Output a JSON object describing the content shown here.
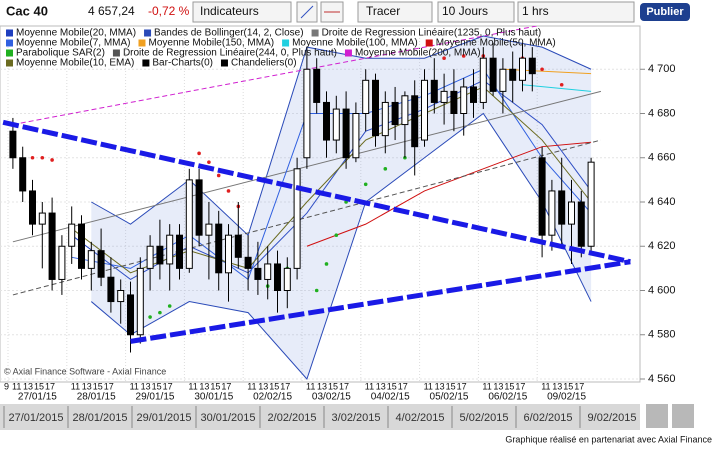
{
  "header": {
    "symbol": "Cac 40",
    "price": "4 657,24",
    "change": "-0,72 %",
    "indicators_button": "Indicateurs",
    "draw_button": "Tracer",
    "period": "10 Jours",
    "interval": "1 hrs",
    "publish_button": "Publier"
  },
  "chart_data": {
    "type": "candlestick",
    "ylim": [
      4560,
      4720
    ],
    "yticks": [
      {
        "value": 4560,
        "label": "4 560"
      },
      {
        "value": 4580,
        "label": "4 580"
      },
      {
        "value": 4600,
        "label": "4 600"
      },
      {
        "value": 4620,
        "label": "4 620"
      },
      {
        "value": 4640,
        "label": "4 640"
      },
      {
        "value": 4660,
        "label": "4 660"
      },
      {
        "value": 4680,
        "label": "4 680"
      },
      {
        "value": 4700,
        "label": "4 700"
      }
    ],
    "grid": true,
    "days": [
      "27/01/15",
      "28/01/15",
      "29/01/15",
      "30/01/15",
      "02/02/15",
      "03/02/15",
      "04/02/15",
      "05/02/15",
      "06/02/15",
      "09/02/15"
    ],
    "hours": [
      "9",
      "11",
      "13",
      "15",
      "17"
    ],
    "ohlc": [
      [
        4672,
        4678,
        4655,
        4660
      ],
      [
        4660,
        4665,
        4640,
        4645
      ],
      [
        4645,
        4650,
        4625,
        4630
      ],
      [
        4630,
        4640,
        4610,
        4635
      ],
      [
        4635,
        4642,
        4600,
        4605
      ],
      [
        4605,
        4625,
        4598,
        4620
      ],
      [
        4620,
        4638,
        4612,
        4630
      ],
      [
        4630,
        4634,
        4605,
        4610
      ],
      [
        4610,
        4622,
        4600,
        4618
      ],
      [
        4618,
        4628,
        4602,
        4606
      ],
      [
        4606,
        4615,
        4590,
        4595
      ],
      [
        4595,
        4605,
        4585,
        4600
      ],
      [
        4598,
        4604,
        4572,
        4580
      ],
      [
        4580,
        4615,
        4576,
        4610
      ],
      [
        4610,
        4625,
        4600,
        4620
      ],
      [
        4620,
        4632,
        4605,
        4612
      ],
      [
        4612,
        4630,
        4600,
        4625
      ],
      [
        4625,
        4630,
        4605,
        4610
      ],
      [
        4610,
        4655,
        4608,
        4650
      ],
      [
        4650,
        4655,
        4620,
        4625
      ],
      [
        4625,
        4640,
        4605,
        4630
      ],
      [
        4630,
        4636,
        4600,
        4608
      ],
      [
        4608,
        4630,
        4595,
        4625
      ],
      [
        4625,
        4640,
        4610,
        4615
      ],
      [
        4615,
        4625,
        4600,
        4610
      ],
      [
        4610,
        4622,
        4598,
        4605
      ],
      [
        4605,
        4620,
        4596,
        4612
      ],
      [
        4612,
        4618,
        4590,
        4600
      ],
      [
        4600,
        4615,
        4592,
        4610
      ],
      [
        4610,
        4660,
        4605,
        4655
      ],
      [
        4660,
        4710,
        4655,
        4700
      ],
      [
        4700,
        4705,
        4680,
        4685
      ],
      [
        4685,
        4690,
        4660,
        4668
      ],
      [
        4668,
        4688,
        4662,
        4682
      ],
      [
        4682,
        4690,
        4655,
        4660
      ],
      [
        4660,
        4685,
        4658,
        4680
      ],
      [
        4680,
        4700,
        4672,
        4695
      ],
      [
        4695,
        4698,
        4665,
        4670
      ],
      [
        4670,
        4690,
        4662,
        4685
      ],
      [
        4685,
        4692,
        4668,
        4675
      ],
      [
        4675,
        4690,
        4660,
        4688
      ],
      [
        4688,
        4695,
        4652,
        4665
      ],
      [
        4668,
        4700,
        4665,
        4695
      ],
      [
        4695,
        4705,
        4680,
        4685
      ],
      [
        4685,
        4698,
        4675,
        4690
      ],
      [
        4690,
        4700,
        4672,
        4680
      ],
      [
        4680,
        4696,
        4670,
        4692
      ],
      [
        4692,
        4700,
        4678,
        4685
      ],
      [
        4685,
        4710,
        4682,
        4705
      ],
      [
        4705,
        4712,
        4688,
        4690
      ],
      [
        4690,
        4705,
        4680,
        4700
      ],
      [
        4700,
        4708,
        4685,
        4695
      ],
      [
        4695,
        4712,
        4690,
        4705
      ],
      [
        4705,
        4710,
        4690,
        4698
      ],
      [
        4660,
        4665,
        4615,
        4625
      ],
      [
        4625,
        4650,
        4618,
        4645
      ],
      [
        4645,
        4660,
        4620,
        4630
      ],
      [
        4630,
        4650,
        4612,
        4640
      ],
      [
        4640,
        4645,
        4615,
        4620
      ],
      [
        4620,
        4660,
        4618,
        4658
      ]
    ],
    "series": [
      {
        "name": "Moyenne Mobile(20, MMA)",
        "color": "#1f3fbf",
        "style": "line",
        "x": [
          6,
          12,
          18,
          24,
          30,
          36,
          42,
          48,
          54,
          59
        ],
        "values": [
          4625,
          4605,
          4620,
          4608,
          4635,
          4672,
          4682,
          4695,
          4675,
          4645
        ]
      },
      {
        "name": "Bandes de Bollinger(14, 2, Close)",
        "color": "#2a4ab8",
        "style": "band",
        "x": [
          8,
          12,
          18,
          24,
          30,
          36,
          42,
          48,
          54,
          59
        ],
        "values": [
          4640,
          4630,
          4650,
          4625,
          4710,
          4705,
          4705,
          4715,
          4710,
          4700
        ],
        "lower": [
          4595,
          4580,
          4595,
          4590,
          4560,
          4640,
          4660,
          4680,
          4640,
          4595
        ]
      },
      {
        "name": "Droite de Regression Linéaire(1235, 0, Plus haut)",
        "color": "#777777",
        "style": "line",
        "x": [
          0,
          60
        ],
        "values": [
          4622,
          4690
        ]
      },
      {
        "name": "Moyenne Mobile(7, MMA)",
        "color": "#3060e0",
        "style": "line",
        "x": [
          6,
          12,
          18,
          24,
          30,
          36,
          42,
          48,
          54,
          59
        ],
        "values": [
          4615,
          4610,
          4625,
          4605,
          4680,
          4680,
          4688,
          4700,
          4660,
          4635
        ]
      },
      {
        "name": "Moyenne Mobile(150, MMA)",
        "color": "#f0a020",
        "style": "line",
        "x": [
          50,
          59
        ],
        "values": [
          4700,
          4698
        ]
      },
      {
        "name": "Moyenne Mobile(100, MMA)",
        "color": "#20d0e0",
        "style": "line",
        "x": [
          52,
          59
        ],
        "values": [
          4693,
          4690
        ]
      },
      {
        "name": "Moyenne Mobile(50, MMA)",
        "color": "#d01010",
        "style": "line",
        "x": [
          30,
          36,
          42,
          48,
          54,
          59
        ],
        "values": [
          4620,
          4630,
          4645,
          4655,
          4665,
          4667
        ]
      },
      {
        "name": "Parabolique SAR(2)",
        "color": "#20b020",
        "style": "dots",
        "x": [
          2,
          3,
          4,
          13,
          14,
          15,
          16,
          19,
          20,
          21,
          22,
          23,
          26,
          27,
          28,
          31,
          32,
          33,
          34,
          36,
          38,
          40,
          44,
          46,
          48,
          52,
          54,
          56
        ],
        "values": [
          4660,
          4660,
          4659,
          4585,
          4588,
          4590,
          4593,
          4662,
          4658,
          4652,
          4645,
          4638,
          4602,
          4606,
          4610,
          4600,
          4612,
          4625,
          4640,
          4648,
          4655,
          4660,
          4705,
          4706,
          4706,
          4705,
          4700,
          4693
        ],
        "point_colors": [
          "#e02020",
          "#e02020",
          "#e02020",
          "#20b020",
          "#20b020",
          "#20b020",
          "#20b020",
          "#e02020",
          "#e02020",
          "#e02020",
          "#e02020",
          "#e02020",
          "#20b020",
          "#20b020",
          "#20b020",
          "#20b020",
          "#20b020",
          "#20b020",
          "#20b020",
          "#20b020",
          "#20b020",
          "#20b020",
          "#e02020",
          "#e02020",
          "#e02020",
          "#e02020",
          "#e02020",
          "#e02020"
        ]
      },
      {
        "name": "Droite de Regression Linéaire(244, 0, Plus haut)",
        "color": "#555555",
        "style": "dash",
        "x": [
          0,
          60
        ],
        "values": [
          4598,
          4668
        ]
      },
      {
        "name": "Moyenne Mobile(200, MMA)",
        "color": "#d020d0",
        "style": "dash",
        "x": [
          0,
          60
        ],
        "values": [
          4675,
          4725
        ]
      },
      {
        "name": "Moyenne Mobile(10, EMA)",
        "color": "#6b6b20",
        "style": "line",
        "x": [
          6,
          12,
          18,
          24,
          30,
          36,
          42,
          48,
          54,
          59
        ],
        "values": [
          4628,
          4608,
          4618,
          4610,
          4640,
          4668,
          4680,
          4692,
          4668,
          4640
        ]
      },
      {
        "name": "Bar-Charts(0)",
        "color": "#000000",
        "style": "none"
      },
      {
        "name": "Chandeliers(0)",
        "color": "#000000",
        "style": "none"
      }
    ],
    "trendlines": [
      {
        "color": "#1a1ae6",
        "x": [
          -1,
          63
        ],
        "values": [
          4676,
          4613
        ]
      },
      {
        "color": "#1a1ae6",
        "x": [
          12,
          63
        ],
        "values": [
          4577,
          4613
        ]
      }
    ],
    "watermark": "© Axial Finance Software - Axial Finance"
  },
  "navigator": {
    "dates": [
      "27/01/2015",
      "28/01/2015",
      "29/01/2015",
      "30/01/2015",
      "2/02/2015",
      "3/02/2015",
      "4/02/2015",
      "5/02/2015",
      "6/02/2015",
      "9/02/2015"
    ]
  },
  "footer": "Graphique réalisé en partenariat avec Axial Finance"
}
